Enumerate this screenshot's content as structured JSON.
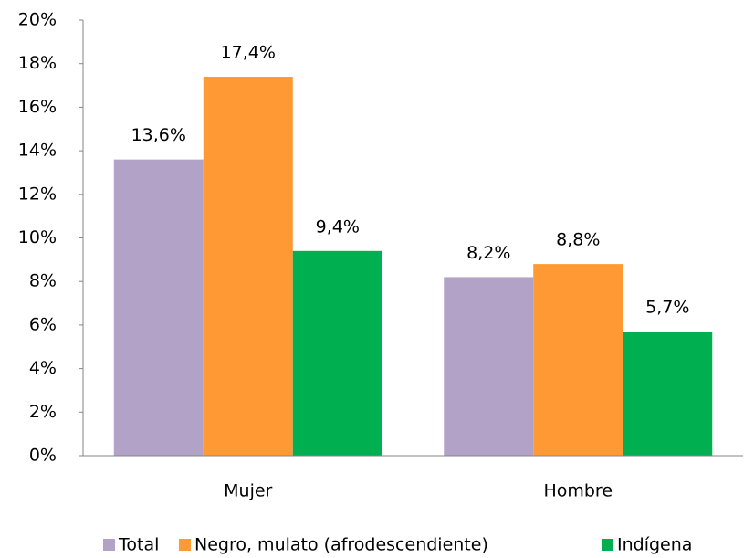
{
  "chart_data": {
    "type": "bar",
    "categories": [
      "Mujer",
      "Hombre"
    ],
    "series": [
      {
        "name": "Total",
        "color": "#b3a2c7",
        "values": [
          13.6,
          8.2
        ],
        "value_labels": [
          "13,6%",
          "8,2%"
        ]
      },
      {
        "name": "Negro, mulato (afrodescendiente)",
        "color": "#ff9933",
        "values": [
          17.4,
          8.8
        ],
        "value_labels": [
          "17,4%",
          "8,8%"
        ]
      },
      {
        "name": "Indígena",
        "color": "#00b050",
        "values": [
          9.4,
          5.7
        ],
        "value_labels": [
          "9,4%",
          "5,7%"
        ]
      }
    ],
    "ylim": [
      0,
      20
    ],
    "yticks": [
      {
        "value": 0,
        "label": "0%"
      },
      {
        "value": 2,
        "label": "2%"
      },
      {
        "value": 4,
        "label": "4%"
      },
      {
        "value": 6,
        "label": "6%"
      },
      {
        "value": 8,
        "label": "8%"
      },
      {
        "value": 10,
        "label": "10%"
      },
      {
        "value": 12,
        "label": "12%"
      },
      {
        "value": 14,
        "label": "14%"
      },
      {
        "value": 16,
        "label": "16%"
      },
      {
        "value": 18,
        "label": "18%"
      },
      {
        "value": 20,
        "label": "20%"
      }
    ],
    "grid": false,
    "legend": "bottom"
  }
}
